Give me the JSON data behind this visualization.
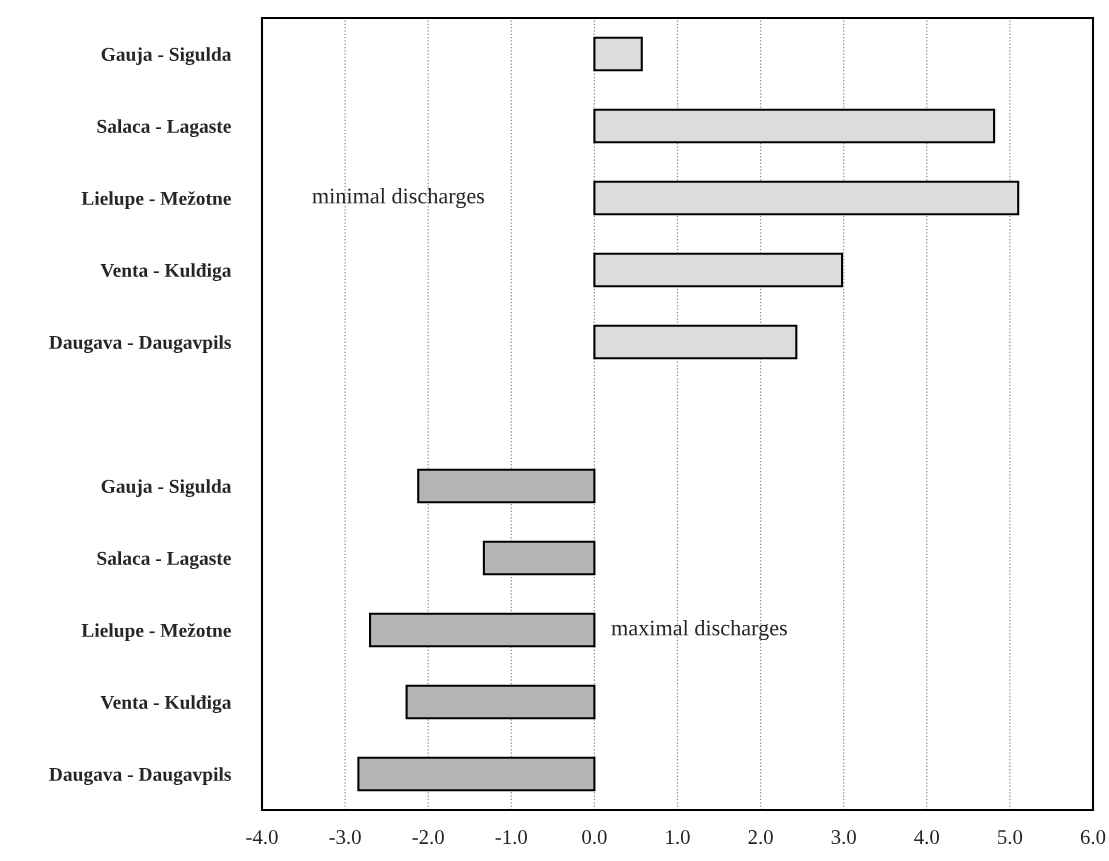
{
  "chart_data": {
    "type": "bar",
    "orientation": "horizontal",
    "categories": [
      "Gauja - Sigulda",
      "Salaca - Lagaste",
      "Lielupe - Mežotne",
      "Venta - Kulđiga",
      "Daugava - Daugavpils",
      null,
      "Gauja - Sigulda",
      "Salaca - Lagaste",
      "Lielupe - Mežotne",
      "Venta - Kulđiga",
      "Daugava - Daugavpils"
    ],
    "values": [
      0.57,
      4.81,
      5.1,
      2.98,
      2.43,
      null,
      -2.12,
      -1.33,
      -2.7,
      -2.26,
      -2.84
    ],
    "colors": [
      "#dcdcdc",
      "#dcdcdc",
      "#dcdcdc",
      "#dcdcdc",
      "#dcdcdc",
      "#dcdcdc",
      "#b4b4b4",
      "#b4b4b4",
      "#b4b4b4",
      "#b4b4b4",
      "#b4b4b4"
    ],
    "xlim": [
      -4.0,
      6.0
    ],
    "xticks": [
      {
        "value": -4,
        "label": "-4.0"
      },
      {
        "value": -3,
        "label": "-3.0"
      },
      {
        "value": -2,
        "label": "-2.0"
      },
      {
        "value": -1,
        "label": "-1.0"
      },
      {
        "value": 0,
        "label": "0.0"
      },
      {
        "value": 1,
        "label": "1.0"
      },
      {
        "value": 2,
        "label": "2.0"
      },
      {
        "value": 3,
        "label": "3.0"
      },
      {
        "value": 4,
        "label": "4.0"
      },
      {
        "value": 5,
        "label": "5.0"
      },
      {
        "value": 6,
        "label": "6.0"
      }
    ],
    "grid": "x",
    "annotations": [
      "minimal discharges",
      "maximal discharges"
    ]
  }
}
